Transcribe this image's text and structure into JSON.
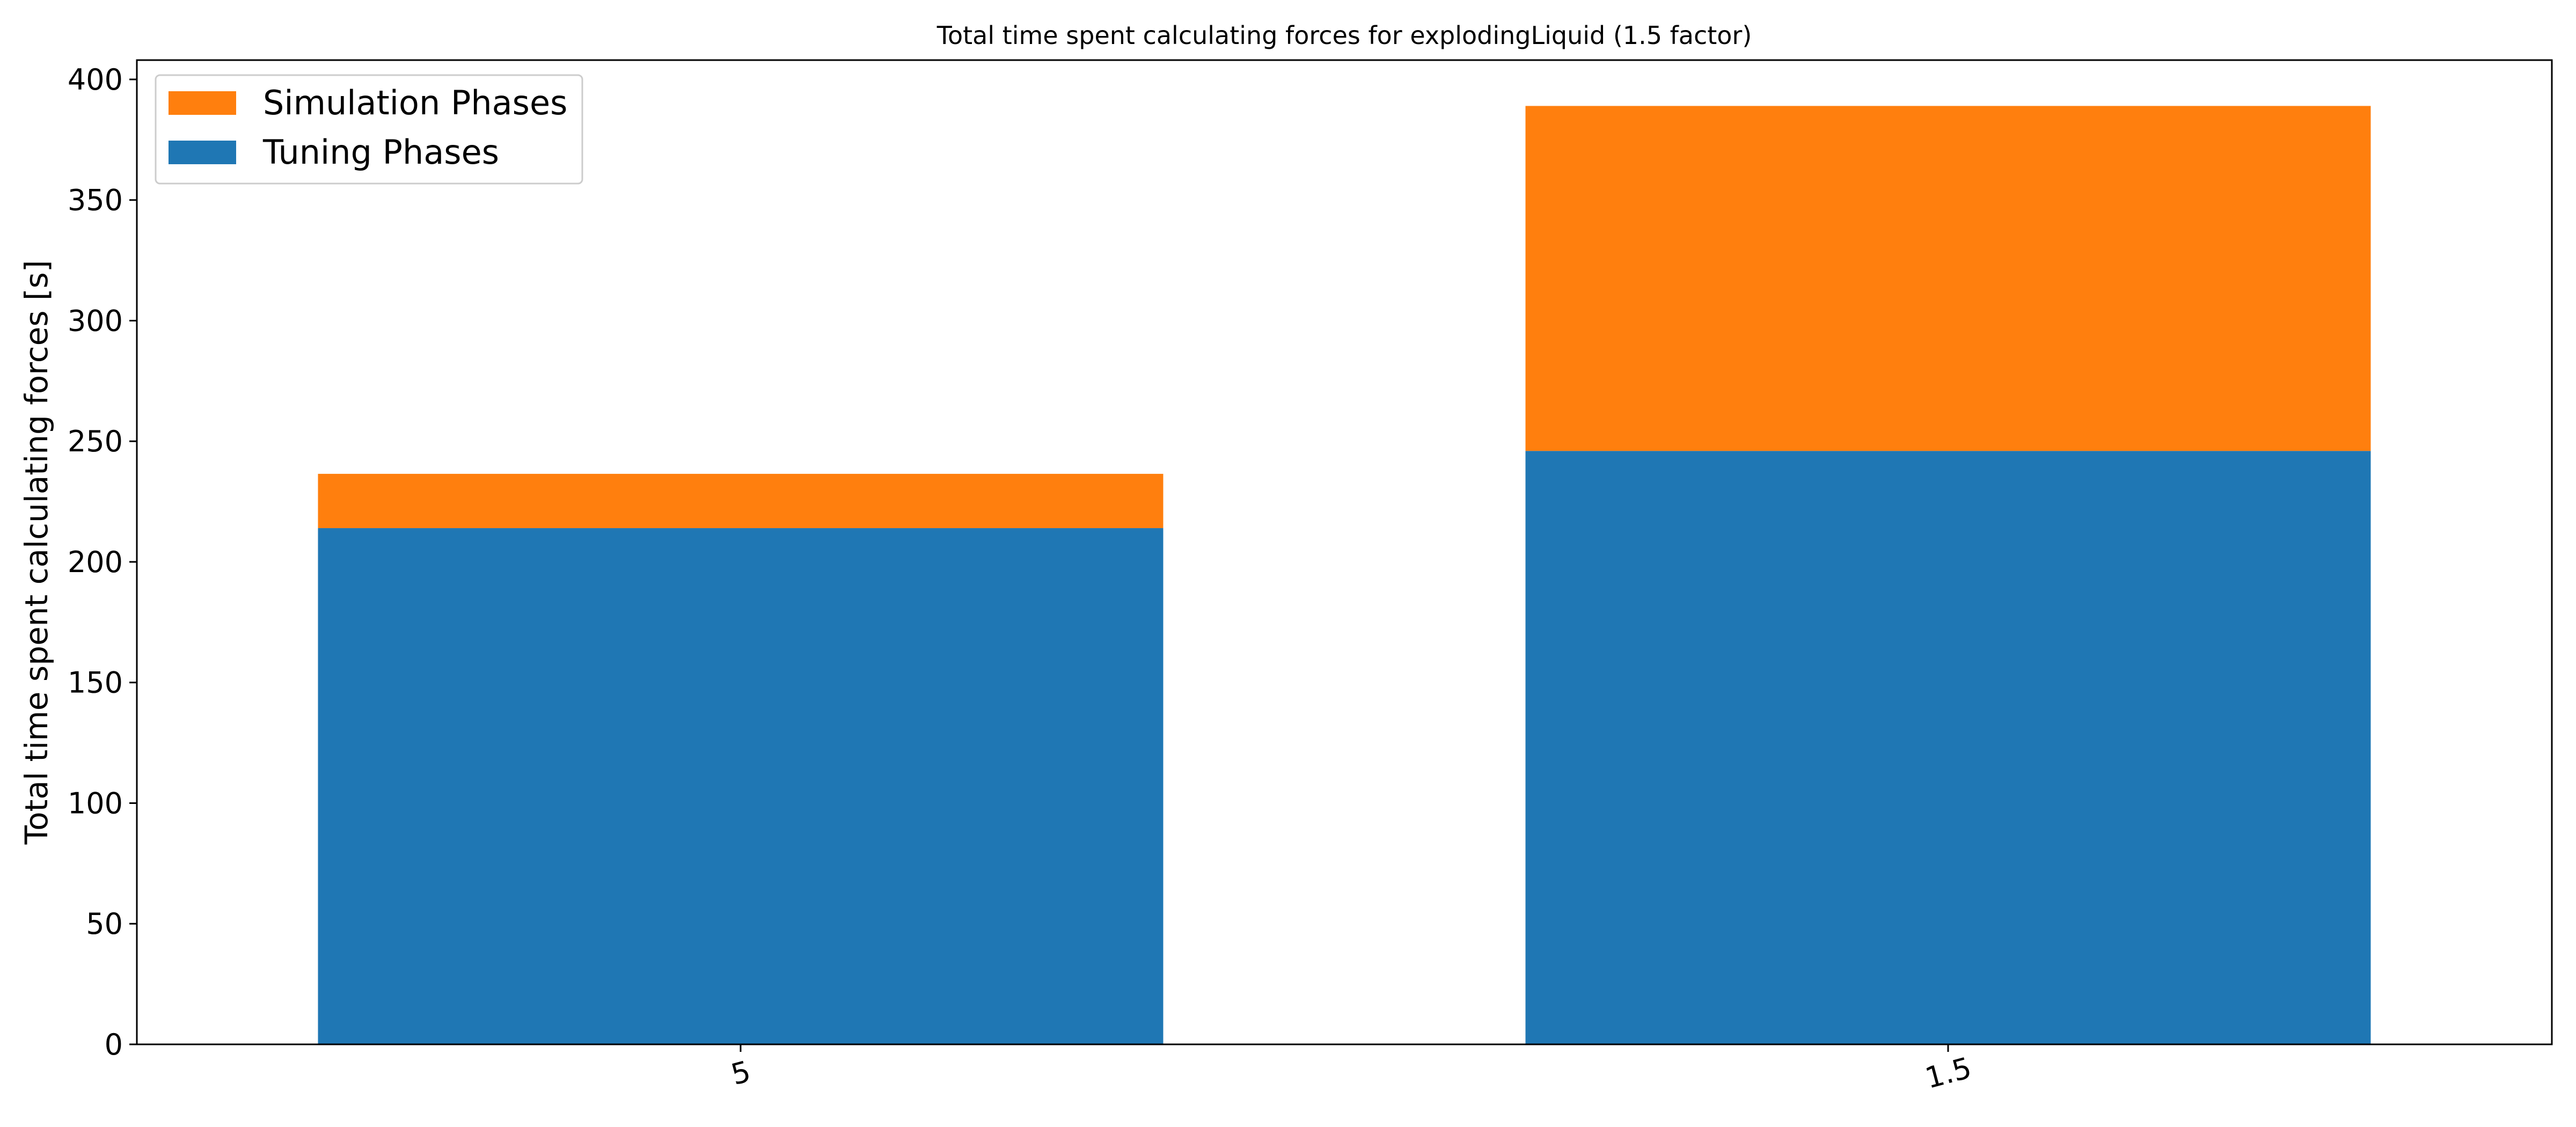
{
  "chart_data": {
    "type": "bar",
    "stacked": true,
    "title": "Total time spent calculating forces for explodingLiquid (1.5 factor)",
    "xlabel": "",
    "ylabel": "Total time spent calculating forces [s]",
    "categories": [
      "5",
      "1.5"
    ],
    "series": [
      {
        "name": "Tuning Phases",
        "color": "#1f77b4",
        "values": [
          214,
          246
        ]
      },
      {
        "name": "Simulation Phases",
        "color": "#ff7f0e",
        "values": [
          22.5,
          143
        ]
      }
    ],
    "ylim": [
      0,
      408
    ],
    "yticks": [
      0,
      50,
      100,
      150,
      200,
      250,
      300,
      350,
      400
    ],
    "ytick_labels": [
      "0",
      "50",
      "100",
      "150",
      "200",
      "250",
      "300",
      "350",
      "400"
    ],
    "grid": false,
    "legend": {
      "position": "top-left",
      "entries": [
        {
          "label": "Simulation Phases",
          "color": "#ff7f0e"
        },
        {
          "label": "Tuning Phases",
          "color": "#1f77b4"
        }
      ]
    }
  }
}
